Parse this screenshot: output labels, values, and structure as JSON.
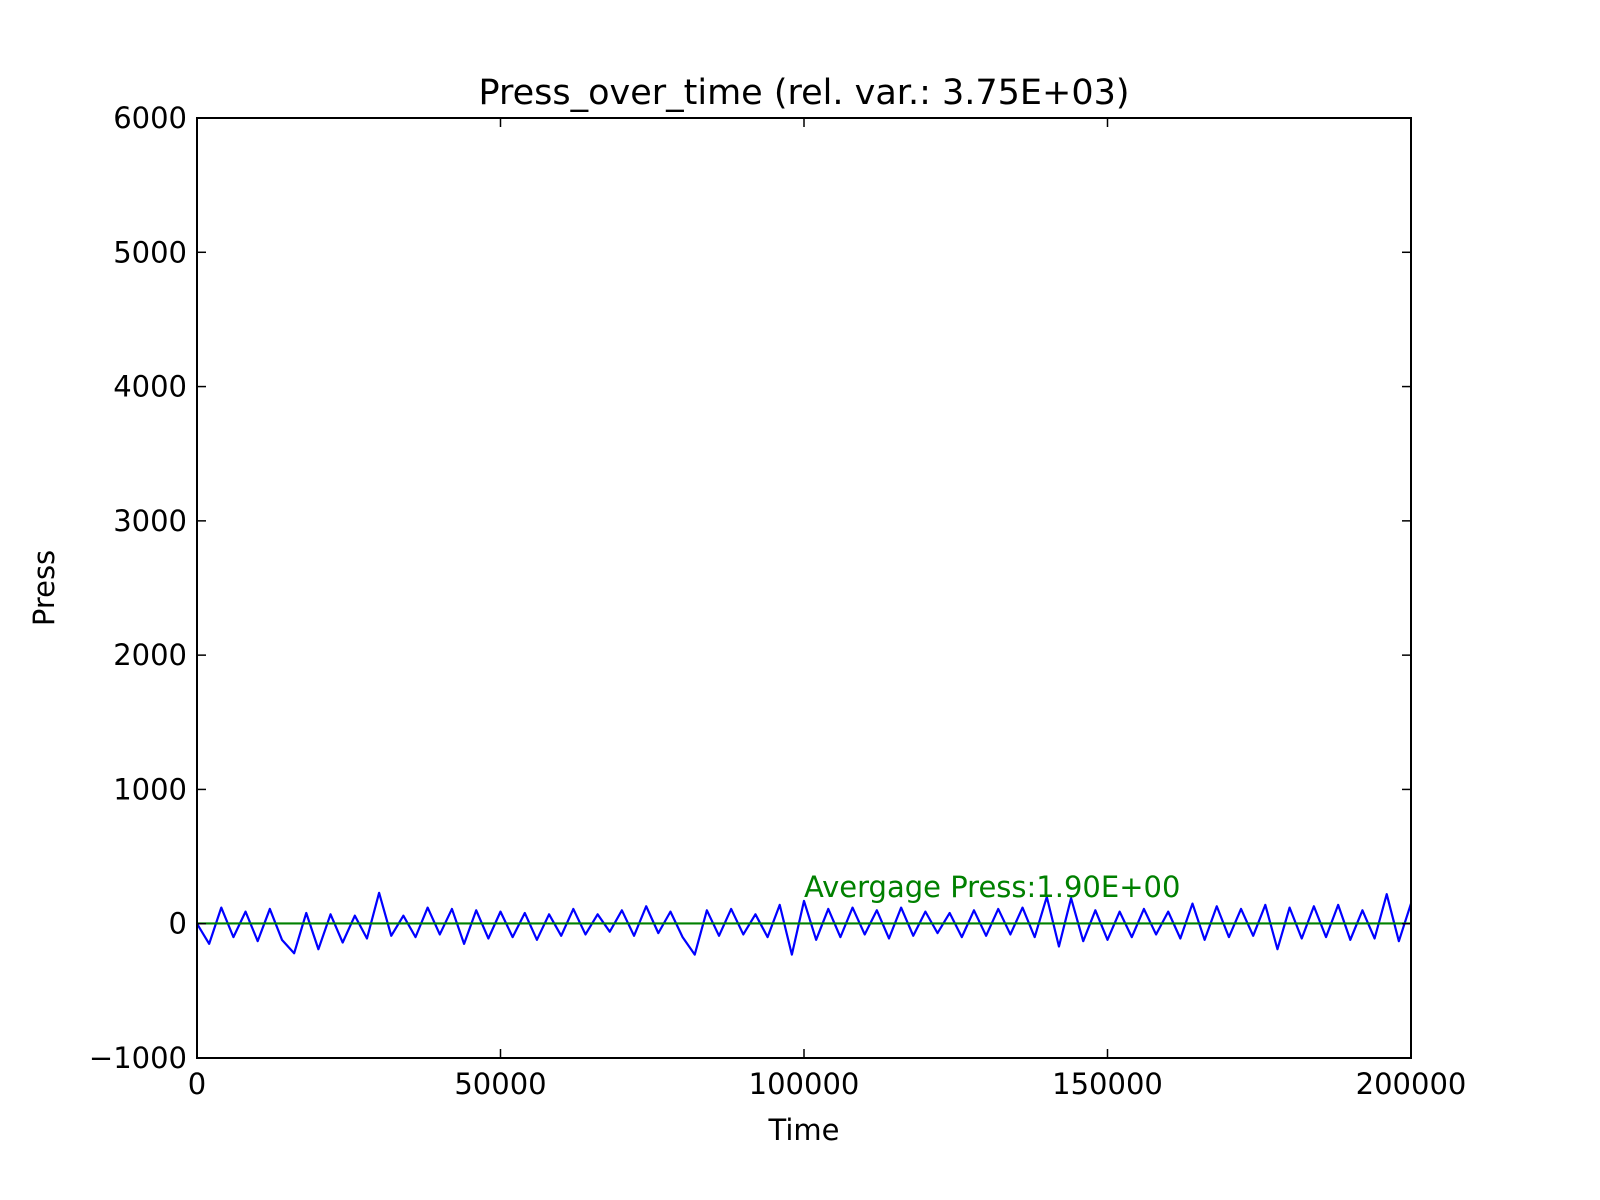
{
  "chart_data": {
    "type": "line",
    "title": "Press_over_time (rel. var.: 3.75E+03)",
    "xlabel": "Time",
    "ylabel": "Press",
    "annotations": [
      {
        "text": "Avergage Press:1.90E+00",
        "x": 100000,
        "y": 200,
        "color": "#008000"
      }
    ],
    "series": [
      {
        "color": "#0000ff",
        "x": [
          0,
          2000,
          4000,
          6000,
          8000,
          10000,
          12000,
          14000,
          16000,
          18000,
          20000,
          22000,
          24000,
          26000,
          28000,
          30000,
          32000,
          34000,
          36000,
          38000,
          40000,
          42000,
          44000,
          46000,
          48000,
          50000,
          52000,
          54000,
          56000,
          58000,
          60000,
          62000,
          64000,
          66000,
          68000,
          70000,
          72000,
          74000,
          76000,
          78000,
          80000,
          82000,
          84000,
          86000,
          88000,
          90000,
          92000,
          94000,
          96000,
          98000,
          100000,
          102000,
          104000,
          106000,
          108000,
          110000,
          112000,
          114000,
          116000,
          118000,
          120000,
          122000,
          124000,
          126000,
          128000,
          130000,
          132000,
          134000,
          136000,
          138000,
          140000,
          142000,
          144000,
          146000,
          148000,
          150000,
          152000,
          154000,
          156000,
          158000,
          160000,
          162000,
          164000,
          166000,
          168000,
          170000,
          172000,
          174000,
          176000,
          178000,
          180000,
          182000,
          184000,
          186000,
          188000,
          190000,
          192000,
          194000,
          196000,
          198000,
          200000
        ],
        "values": [
          0,
          -150,
          120,
          -100,
          90,
          -130,
          110,
          -120,
          -220,
          80,
          -190,
          70,
          -140,
          60,
          -110,
          230,
          -90,
          60,
          -100,
          120,
          -80,
          110,
          -150,
          100,
          -110,
          90,
          -100,
          80,
          -120,
          70,
          -90,
          110,
          -80,
          70,
          -60,
          100,
          -90,
          130,
          -70,
          90,
          -100,
          -230,
          100,
          -90,
          110,
          -80,
          70,
          -100,
          140,
          -230,
          170,
          -120,
          110,
          -100,
          120,
          -80,
          100,
          -110,
          120,
          -90,
          90,
          -70,
          80,
          -100,
          100,
          -90,
          110,
          -80,
          120,
          -100,
          200,
          -170,
          190,
          -130,
          100,
          -120,
          90,
          -100,
          110,
          -80,
          90,
          -110,
          150,
          -120,
          130,
          -100,
          110,
          -90,
          140,
          -190,
          120,
          -110,
          130,
          -100,
          140,
          -120,
          100,
          -110,
          220,
          -130,
          150
        ]
      },
      {
        "color": "#008000",
        "x": [
          0,
          200000
        ],
        "values": [
          1.9,
          1.9
        ]
      }
    ],
    "xlim": [
      0,
      200000
    ],
    "xticks": [
      0,
      50000,
      100000,
      150000,
      200000
    ],
    "ylim": [
      -1000,
      6000
    ],
    "yticks": [
      {
        "value": -1000,
        "label": "−1000"
      },
      0,
      1000,
      2000,
      3000,
      4000,
      5000,
      6000
    ],
    "grid": false
  }
}
